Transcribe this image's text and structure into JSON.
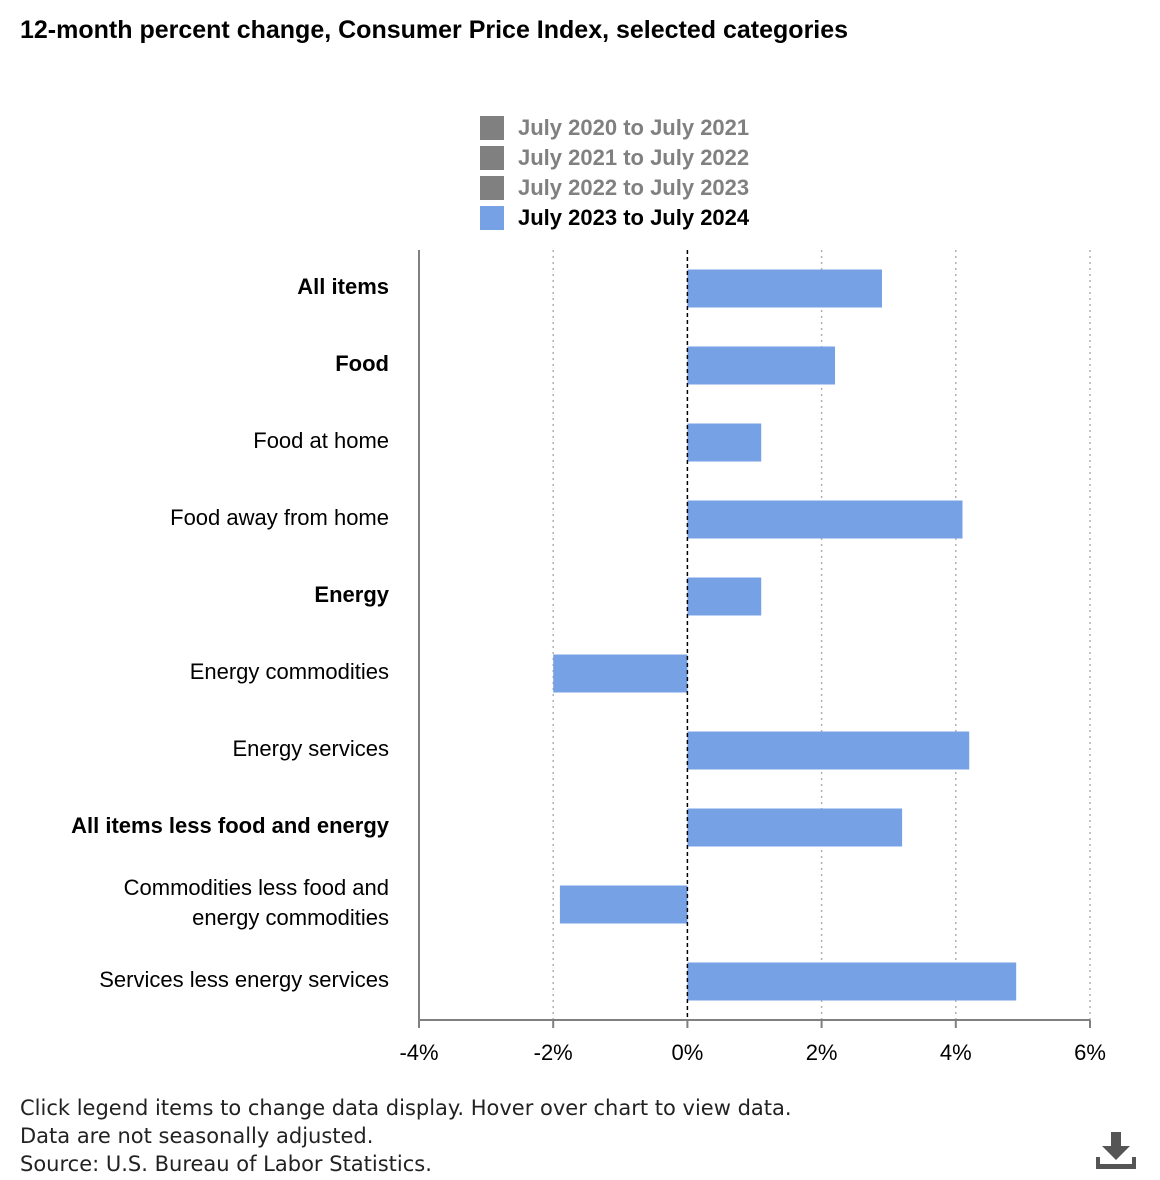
{
  "title": "12-month percent change, Consumer Price Index, selected categories",
  "legend": [
    {
      "label": "July 2020 to July 2021",
      "color": "#808080",
      "text_color": "#808080",
      "active": false
    },
    {
      "label": "July 2021 to July 2022",
      "color": "#808080",
      "text_color": "#808080",
      "active": false
    },
    {
      "label": "July 2022 to July 2023",
      "color": "#808080",
      "text_color": "#808080",
      "active": false
    },
    {
      "label": "July 2023 to July 2024",
      "color": "#77a1e5",
      "text_color": "#000000",
      "active": true
    }
  ],
  "chart_data": {
    "type": "bar",
    "orientation": "horizontal",
    "categories": [
      "All items",
      "Food",
      "Food at home",
      "Food away from home",
      "Energy",
      "Energy commodities",
      "Energy services",
      "All items less food and energy",
      "Commodities less food and\nenergy commodities",
      "Services less energy services"
    ],
    "bold_categories": [
      true,
      true,
      false,
      false,
      true,
      false,
      false,
      true,
      false,
      false
    ],
    "series": [
      {
        "name": "July 2023 to July 2024",
        "color": "#77a1e5",
        "values": [
          2.9,
          2.2,
          1.1,
          4.1,
          1.1,
          -2.0,
          4.2,
          3.2,
          -1.9,
          4.9
        ]
      }
    ],
    "xlim": [
      -4,
      6
    ],
    "xticks": [
      -4,
      -2,
      0,
      2,
      4,
      6
    ],
    "xtick_labels": [
      "-4%",
      "-2%",
      "0%",
      "2%",
      "4%",
      "6%"
    ],
    "grid": "vertical dotted",
    "legend_position": "top-center"
  },
  "footnotes": [
    "Click legend items to change data display. Hover over chart to view data.",
    "Data are not seasonally adjusted.",
    "Source: U.S. Bureau of Labor Statistics."
  ],
  "icons": {
    "download": "download-icon"
  }
}
